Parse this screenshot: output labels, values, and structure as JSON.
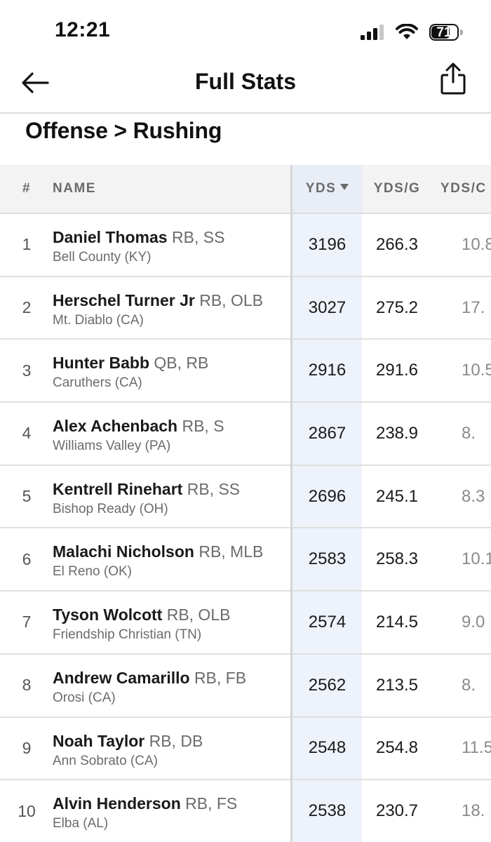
{
  "status_bar": {
    "time": "12:21",
    "battery": "71",
    "battery_level": 0.71,
    "icons": [
      "signal-icon",
      "wifi-icon",
      "battery-icon"
    ]
  },
  "header": {
    "title": "Full Stats",
    "back_icon": "back-arrow-icon",
    "share_icon": "share-icon"
  },
  "section": {
    "title": "Offense > Rushing"
  },
  "table": {
    "columns": {
      "rank": "#",
      "name": "NAME",
      "yds": "YDS",
      "yds_per_game": "YDS/G",
      "yds_per_carry": "YDS/C"
    },
    "sorted_by": "YDS",
    "sort_direction": "descending",
    "rows": [
      {
        "rank": "1",
        "name": "Daniel Thomas",
        "positions": "RB, SS",
        "school": "Bell County (KY)",
        "yds": "3196",
        "yds_g": "266.3",
        "yds_c": "10.8"
      },
      {
        "rank": "2",
        "name": "Herschel Turner Jr",
        "positions": "RB, OLB",
        "school": "Mt. Diablo (CA)",
        "yds": "3027",
        "yds_g": "275.2",
        "yds_c": "17."
      },
      {
        "rank": "3",
        "name": "Hunter Babb",
        "positions": "QB, RB",
        "school": "Caruthers (CA)",
        "yds": "2916",
        "yds_g": "291.6",
        "yds_c": "10.5"
      },
      {
        "rank": "4",
        "name": "Alex Achenbach",
        "positions": "RB, S",
        "school": "Williams Valley (PA)",
        "yds": "2867",
        "yds_g": "238.9",
        "yds_c": "8."
      },
      {
        "rank": "5",
        "name": "Kentrell Rinehart",
        "positions": "RB, SS",
        "school": "Bishop Ready (OH)",
        "yds": "2696",
        "yds_g": "245.1",
        "yds_c": "8.3"
      },
      {
        "rank": "6",
        "name": "Malachi Nicholson",
        "positions": "RB, MLB",
        "school": "El Reno (OK)",
        "yds": "2583",
        "yds_g": "258.3",
        "yds_c": "10.1"
      },
      {
        "rank": "7",
        "name": "Tyson Wolcott",
        "positions": "RB, OLB",
        "school": "Friendship Christian (TN)",
        "yds": "2574",
        "yds_g": "214.5",
        "yds_c": "9.0"
      },
      {
        "rank": "8",
        "name": "Andrew Camarillo",
        "positions": "RB, FB",
        "school": "Orosi (CA)",
        "yds": "2562",
        "yds_g": "213.5",
        "yds_c": "8."
      },
      {
        "rank": "9",
        "name": "Noah Taylor",
        "positions": "RB, DB",
        "school": "Ann Sobrato (CA)",
        "yds": "2548",
        "yds_g": "254.8",
        "yds_c": "11.5"
      },
      {
        "rank": "10",
        "name": "Alvin Henderson",
        "positions": "RB, FS",
        "school": "Elba (AL)",
        "yds": "2538",
        "yds_g": "230.7",
        "yds_c": "18."
      }
    ]
  }
}
